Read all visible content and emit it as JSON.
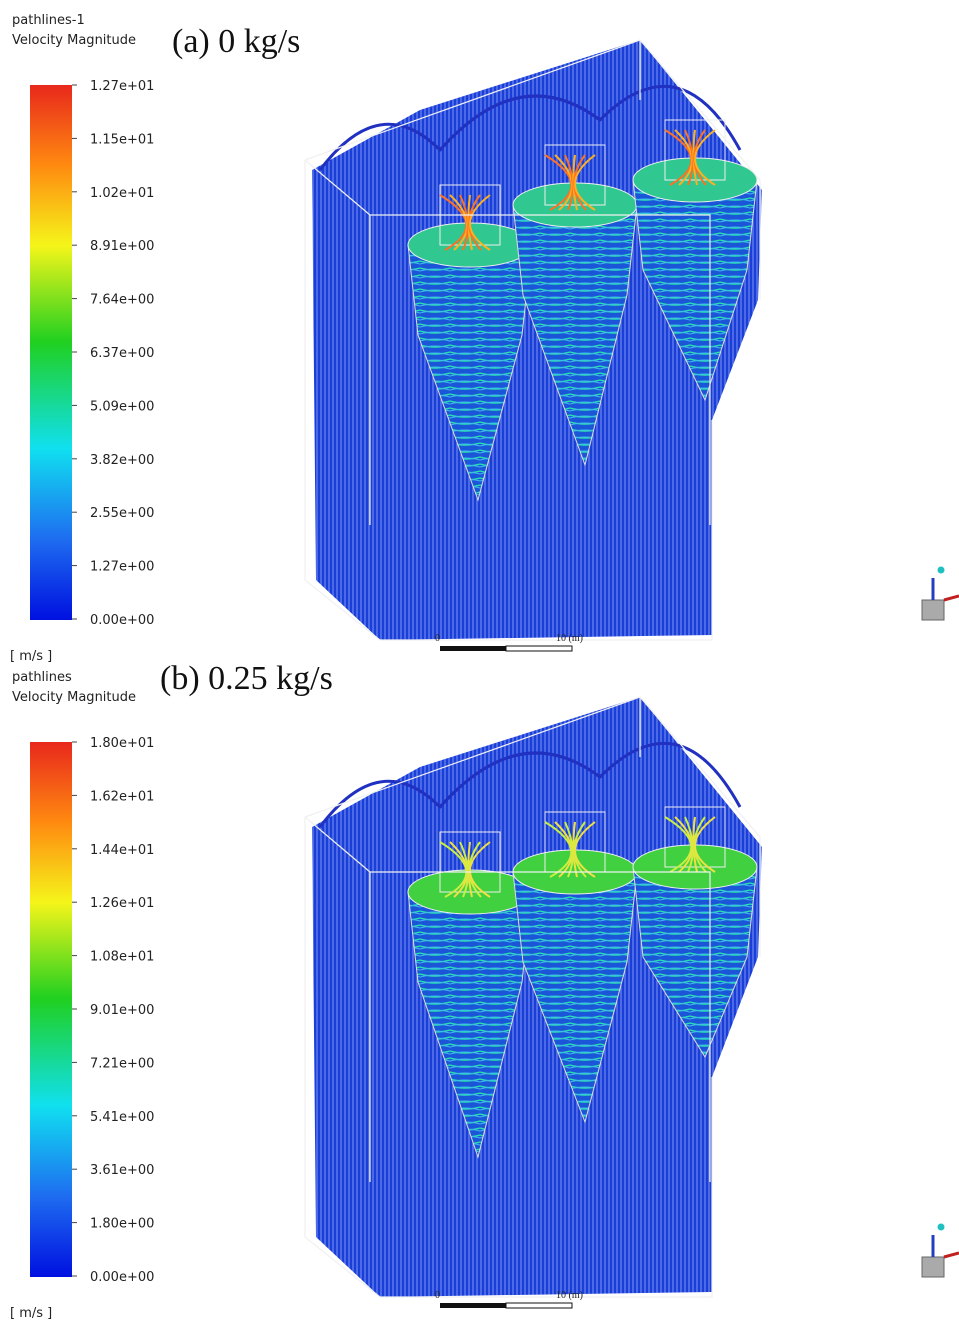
{
  "panels": [
    {
      "legend_title": "pathlines-1",
      "legend_subtitle": "Velocity Magnitude",
      "caption": "(a) 0 kg/s",
      "colorbar_labels": [
        "1.27e+01",
        "1.15e+01",
        "1.02e+01",
        "8.91e+00",
        "7.64e+00",
        "6.37e+00",
        "5.09e+00",
        "3.82e+00",
        "2.55e+00",
        "1.27e+00",
        "0.00e+00"
      ],
      "unit": "[ m/s ]",
      "scale_labels": [
        "0",
        "10 (m)"
      ]
    },
    {
      "legend_title": "pathlines",
      "legend_subtitle": "Velocity Magnitude",
      "caption": "(b) 0.25 kg/s",
      "colorbar_labels": [
        "1.80e+01",
        "1.62e+01",
        "1.44e+01",
        "1.26e+01",
        "1.08e+01",
        "9.01e+00",
        "7.21e+00",
        "5.41e+00",
        "3.61e+00",
        "1.80e+00",
        "0.00e+00"
      ],
      "unit": "[ m/s ]",
      "scale_labels": [
        "0",
        "10 (m)"
      ]
    }
  ]
}
